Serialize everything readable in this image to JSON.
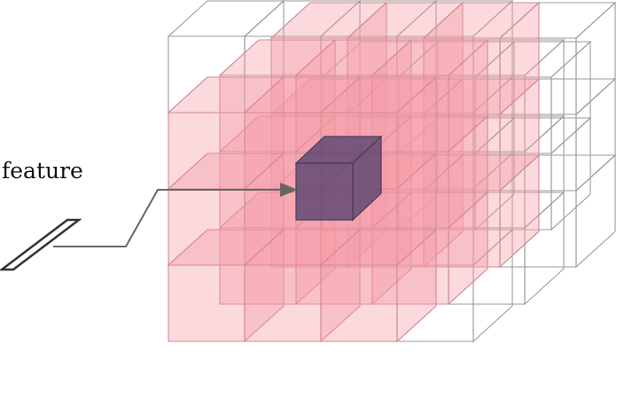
{
  "diagram": {
    "feature_label": "feature",
    "colors": {
      "wire": "#9a9a9a",
      "pink_fill": "#f49aa6",
      "center_fill": "#4a3a6a",
      "center_edge": "#4b3d5c",
      "arrow": "#666666",
      "vector_stroke": "#333333"
    },
    "grid": {
      "layers": 4,
      "rows": 4,
      "cols": 4
    },
    "center_cell": {
      "layer": 1,
      "row": 1,
      "col": 1
    }
  }
}
